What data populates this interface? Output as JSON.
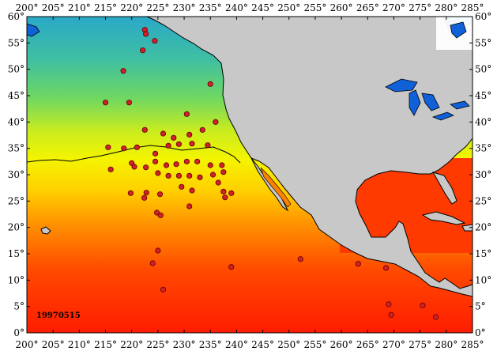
{
  "map": {
    "date_label": "19970515",
    "lon_labels": [
      "200°",
      "205°",
      "210°",
      "215°",
      "220°",
      "225°",
      "230°",
      "235°",
      "240°",
      "245°",
      "250°",
      "255°",
      "260°",
      "265°",
      "270°",
      "275°",
      "280°",
      "285°"
    ],
    "lat_labels": [
      "0°",
      "5°",
      "10°",
      "15°",
      "20°",
      "25°",
      "30°",
      "35°",
      "40°",
      "45°",
      "50°",
      "55°",
      "60°"
    ],
    "lon_range": [
      200,
      285
    ],
    "lat_range": [
      0,
      60
    ],
    "colors": {
      "land": "#c8c8c8",
      "coast": "#000000",
      "lakes": "#1060d8",
      "station_fill": "#d0202a",
      "station_stroke": "#600000",
      "sst_cold": "#20b0c8",
      "sst_mid": "#f0f000",
      "sst_warm": "#ff2000"
    },
    "stations": [
      [
        222.5,
        57.5
      ],
      [
        222.7,
        56.7
      ],
      [
        224.4,
        55.4
      ],
      [
        222.1,
        53.6
      ],
      [
        218.4,
        49.7
      ],
      [
        215.0,
        43.7
      ],
      [
        219.5,
        43.7
      ],
      [
        235.0,
        47.2
      ],
      [
        230.5,
        41.5
      ],
      [
        236.0,
        40.0
      ],
      [
        222.5,
        38.5
      ],
      [
        226.0,
        37.8
      ],
      [
        228.0,
        37.0
      ],
      [
        231.0,
        37.6
      ],
      [
        233.5,
        38.5
      ],
      [
        215.5,
        35.2
      ],
      [
        218.5,
        35.0
      ],
      [
        221.0,
        35.2
      ],
      [
        224.5,
        34.0
      ],
      [
        227.0,
        35.5
      ],
      [
        229.0,
        35.8
      ],
      [
        231.5,
        35.9
      ],
      [
        234.5,
        35.6
      ],
      [
        220.0,
        32.2
      ],
      [
        222.7,
        31.4
      ],
      [
        224.5,
        32.5
      ],
      [
        226.6,
        31.8
      ],
      [
        228.5,
        32.0
      ],
      [
        230.5,
        32.5
      ],
      [
        232.5,
        32.5
      ],
      [
        235.0,
        31.8
      ],
      [
        237.2,
        31.8
      ],
      [
        216.0,
        31.0
      ],
      [
        220.5,
        31.5
      ],
      [
        225.0,
        30.3
      ],
      [
        227.0,
        29.8
      ],
      [
        229.0,
        29.8
      ],
      [
        231.0,
        29.8
      ],
      [
        233.0,
        29.5
      ],
      [
        235.5,
        30.0
      ],
      [
        237.5,
        30.5
      ],
      [
        236.5,
        28.5
      ],
      [
        229.5,
        27.7
      ],
      [
        231.5,
        27.0
      ],
      [
        219.8,
        26.5
      ],
      [
        222.8,
        26.6
      ],
      [
        225.4,
        26.3
      ],
      [
        237.5,
        26.8
      ],
      [
        237.8,
        25.7
      ],
      [
        239.0,
        26.5
      ],
      [
        222.4,
        25.6
      ],
      [
        231.0,
        24.0
      ],
      [
        224.8,
        22.8
      ],
      [
        225.5,
        22.3
      ],
      [
        225.0,
        15.6
      ],
      [
        224.0,
        13.2
      ],
      [
        239.0,
        12.5
      ],
      [
        252.2,
        14.0
      ],
      [
        263.2,
        13.1
      ],
      [
        268.5,
        12.3
      ],
      [
        226.0,
        8.2
      ],
      [
        269.0,
        5.4
      ],
      [
        275.5,
        5.2
      ],
      [
        269.5,
        3.4
      ],
      [
        278.0,
        3.0
      ]
    ]
  }
}
